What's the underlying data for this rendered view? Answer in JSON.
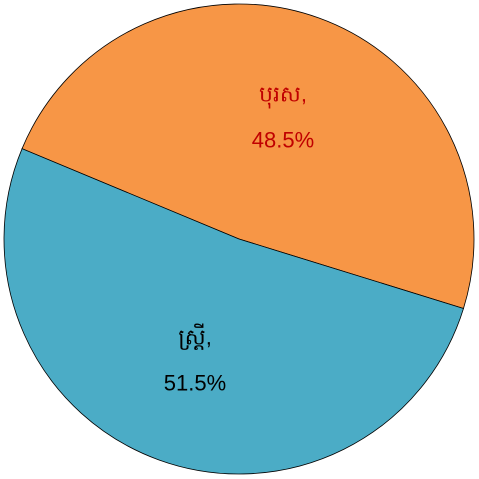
{
  "chart_data": {
    "type": "pie",
    "categories": [
      "បុរស,",
      "ស្ត្រី,"
    ],
    "values": [
      48.5,
      51.5
    ],
    "value_labels": [
      "48.5%",
      "51.5%"
    ],
    "colors": [
      "#F79646",
      "#4BACC6"
    ],
    "label_colors": [
      "#C00000",
      "#000000"
    ]
  }
}
